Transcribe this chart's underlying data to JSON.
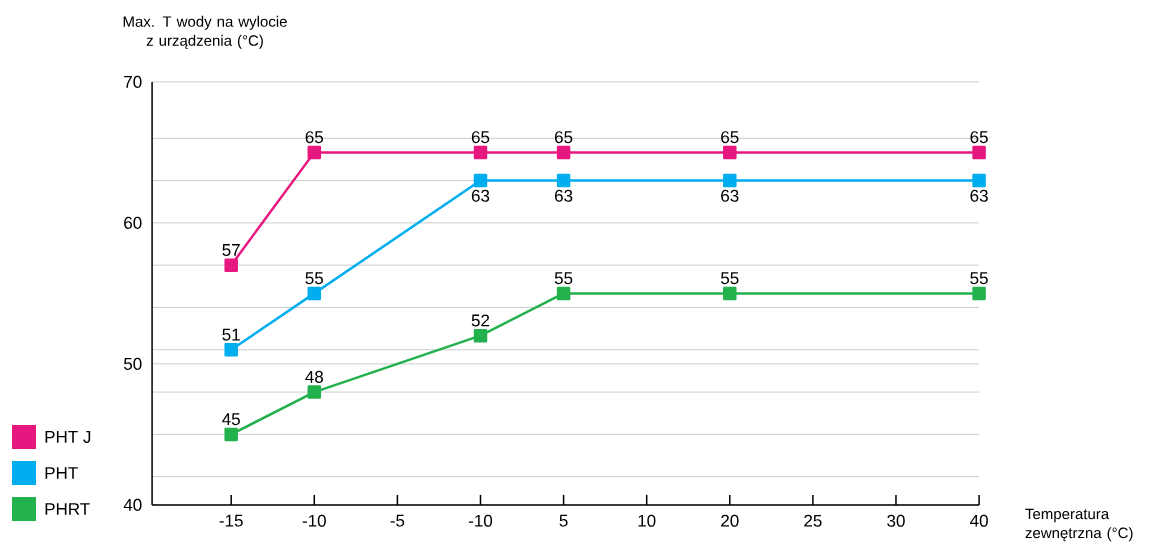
{
  "chart_data": {
    "type": "line",
    "ylabel": "Max. T wody na wylocie z urządzenia (°C)",
    "xlabel": "Temperatura zewnętrzna (°C)",
    "categories": [
      "-15",
      "-10",
      "-5",
      "-10",
      "5",
      "10",
      "20",
      "25",
      "30",
      "40"
    ],
    "series": [
      {
        "name": "PHT J",
        "color": "#e6177e",
        "values": [
          57,
          65,
          null,
          65,
          65,
          null,
          65,
          null,
          null,
          65
        ]
      },
      {
        "name": "PHT",
        "color": "#00aeef",
        "values": [
          51,
          55,
          null,
          63,
          63,
          null,
          63,
          null,
          null,
          63
        ]
      },
      {
        "name": "PHRT",
        "color": "#22b14c",
        "values": [
          45,
          48,
          null,
          52,
          55,
          null,
          55,
          null,
          null,
          55
        ]
      }
    ],
    "ylim": [
      40,
      70
    ],
    "yticks": [
      40,
      {
        "value": 42,
        "label": null
      },
      {
        "value": 45,
        "label": null
      },
      {
        "value": 48,
        "label": null
      },
      50,
      {
        "value": 51,
        "label": null
      },
      {
        "value": 54,
        "label": null
      },
      {
        "value": 57,
        "label": null
      },
      60,
      {
        "value": 63,
        "label": null
      },
      {
        "value": 66,
        "label": null
      },
      70
    ],
    "grid": "y",
    "legend": "left",
    "marker": "square",
    "line_style": "solid",
    "data_labels": true
  }
}
